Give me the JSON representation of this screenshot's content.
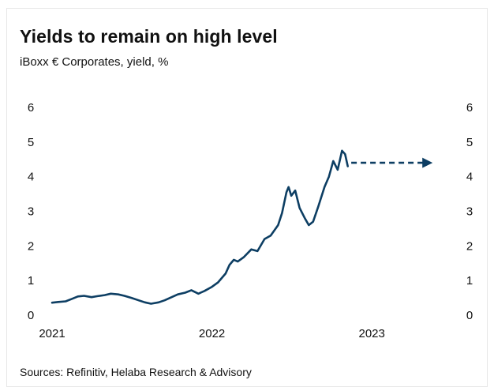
{
  "title": "Yields to remain on high level",
  "subtitle": "iBoxx € Corporates, yield, %",
  "source": "Sources: Refinitiv, Helaba Research & Advisory",
  "colors": {
    "line": "#0d3e63",
    "text": "#111111",
    "border": "#e6e6e6"
  },
  "chart_data": {
    "type": "line",
    "title": "Yields to remain on high level",
    "subtitle": "iBoxx € Corporates, yield, %",
    "xlabel": "",
    "ylabel": "",
    "x_ticks": [
      "2021",
      "2022",
      "2023"
    ],
    "x_range": [
      "2021-01-01",
      "2023-06-01"
    ],
    "y_ticks": [
      "0",
      "1",
      "2",
      "3",
      "4",
      "5",
      "6"
    ],
    "ylim": [
      0,
      6
    ],
    "grid": false,
    "legend": "none",
    "y_axis_both_sides": true,
    "series": [
      {
        "style": "solid",
        "points": [
          [
            "2021-01-01",
            0.36
          ],
          [
            "2021-01-15",
            0.38
          ],
          [
            "2021-02-01",
            0.4
          ],
          [
            "2021-02-15",
            0.47
          ],
          [
            "2021-03-01",
            0.54
          ],
          [
            "2021-03-15",
            0.56
          ],
          [
            "2021-04-01",
            0.52
          ],
          [
            "2021-04-15",
            0.55
          ],
          [
            "2021-05-01",
            0.58
          ],
          [
            "2021-05-15",
            0.62
          ],
          [
            "2021-06-01",
            0.6
          ],
          [
            "2021-06-15",
            0.56
          ],
          [
            "2021-07-01",
            0.5
          ],
          [
            "2021-07-15",
            0.44
          ],
          [
            "2021-08-01",
            0.37
          ],
          [
            "2021-08-15",
            0.33
          ],
          [
            "2021-09-01",
            0.37
          ],
          [
            "2021-09-15",
            0.43
          ],
          [
            "2021-10-01",
            0.52
          ],
          [
            "2021-10-15",
            0.6
          ],
          [
            "2021-11-01",
            0.65
          ],
          [
            "2021-11-15",
            0.72
          ],
          [
            "2021-12-01",
            0.62
          ],
          [
            "2021-12-15",
            0.7
          ],
          [
            "2022-01-01",
            0.82
          ],
          [
            "2022-01-15",
            0.95
          ],
          [
            "2022-02-01",
            1.2
          ],
          [
            "2022-02-10",
            1.45
          ],
          [
            "2022-02-20",
            1.6
          ],
          [
            "2022-03-01",
            1.55
          ],
          [
            "2022-03-15",
            1.68
          ],
          [
            "2022-04-01",
            1.9
          ],
          [
            "2022-04-15",
            1.85
          ],
          [
            "2022-05-01",
            2.2
          ],
          [
            "2022-05-15",
            2.3
          ],
          [
            "2022-06-01",
            2.6
          ],
          [
            "2022-06-10",
            2.95
          ],
          [
            "2022-06-20",
            3.55
          ],
          [
            "2022-06-25",
            3.7
          ],
          [
            "2022-07-01",
            3.45
          ],
          [
            "2022-07-10",
            3.6
          ],
          [
            "2022-07-20",
            3.1
          ],
          [
            "2022-08-01",
            2.8
          ],
          [
            "2022-08-10",
            2.6
          ],
          [
            "2022-08-20",
            2.7
          ],
          [
            "2022-09-01",
            3.15
          ],
          [
            "2022-09-15",
            3.7
          ],
          [
            "2022-09-25",
            4.0
          ],
          [
            "2022-10-05",
            4.45
          ],
          [
            "2022-10-15",
            4.2
          ],
          [
            "2022-10-25",
            4.75
          ],
          [
            "2022-11-01",
            4.65
          ],
          [
            "2022-11-07",
            4.3
          ]
        ]
      },
      {
        "style": "dashed-arrow",
        "points": [
          [
            "2022-11-15",
            4.4
          ],
          [
            "2023-05-01",
            4.4
          ]
        ]
      }
    ]
  }
}
